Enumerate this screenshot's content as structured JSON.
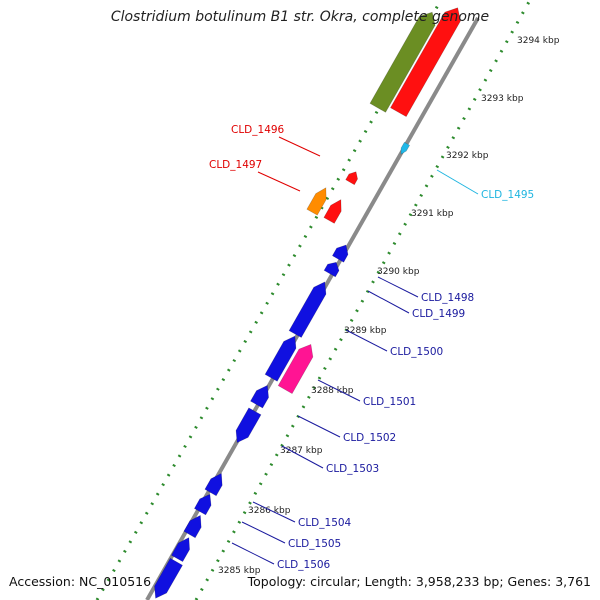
{
  "title": "Clostridium botulinum B1 str. Okra, complete genome",
  "footer": {
    "accession": "Accession: NC_010516",
    "topology": "Topology: circular; Length: 3,958,233 bp; Genes: 3,761"
  },
  "ticks": [
    "3294 kbp",
    "3293 kbp",
    "3292 kbp",
    "3291 kbp",
    "3290 kbp",
    "3289 kbp",
    "3288 kbp",
    "3287 kbp",
    "3286 kbp",
    "3285 kbp"
  ],
  "labels": [
    {
      "text": "CLD_1496",
      "color": "#e00000"
    },
    {
      "text": "CLD_1497",
      "color": "#e00000"
    },
    {
      "text": "CLD_1495",
      "color": "#1fb5e0"
    },
    {
      "text": "CLD_1498",
      "color": "#1a1a9e"
    },
    {
      "text": "CLD_1499",
      "color": "#1a1a9e"
    },
    {
      "text": "CLD_1500",
      "color": "#1a1a9e"
    },
    {
      "text": "CLD_1501",
      "color": "#1a1a9e"
    },
    {
      "text": "CLD_1502",
      "color": "#1a1a9e"
    },
    {
      "text": "CLD_1503",
      "color": "#1a1a9e"
    },
    {
      "text": "CLD_1504",
      "color": "#1a1a9e"
    },
    {
      "text": "CLD_1505",
      "color": "#1a1a9e"
    },
    {
      "text": "CLD_1506",
      "color": "#1a1a9e"
    }
  ],
  "colors": {
    "backbone": "#8a8a8a",
    "dots": "#2e8b2e",
    "cds_blue": "#1010e0",
    "cds_red": "#ff1010",
    "cds_olive": "#6b8e23",
    "cds_orange": "#ff8c00",
    "cds_pink": "#ff1493",
    "cds_cyan": "#20b8e8"
  }
}
